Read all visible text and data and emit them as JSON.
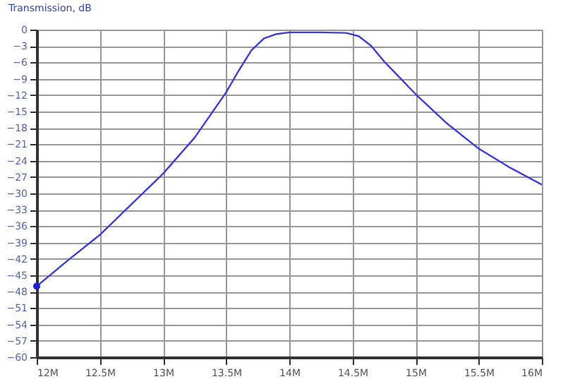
{
  "chart_data": {
    "type": "line",
    "ylabel": "Transmission, dB",
    "xlim": [
      12,
      16
    ],
    "xticks": [
      {
        "value": 12,
        "label": "12M"
      },
      {
        "value": 12.5,
        "label": "12.5M"
      },
      {
        "value": 13,
        "label": "13M"
      },
      {
        "value": 13.5,
        "label": "13.5M"
      },
      {
        "value": 14,
        "label": "14M"
      },
      {
        "value": 14.5,
        "label": "14.5M"
      },
      {
        "value": 15,
        "label": "15M"
      },
      {
        "value": 15.5,
        "label": "15.5M"
      },
      {
        "value": 16,
        "label": "16M"
      }
    ],
    "ylim": [
      -60,
      0
    ],
    "yticks": [
      0,
      -3,
      -6,
      -9,
      -12,
      -15,
      -18,
      -21,
      -24,
      -27,
      -30,
      -33,
      -36,
      -39,
      -42,
      -45,
      -48,
      -51,
      -54,
      -57,
      -60
    ],
    "grid": true,
    "series": [
      {
        "color": "#3c3cd2",
        "x": [
          12,
          12.25,
          12.5,
          12.75,
          13,
          13.25,
          13.5,
          13.6,
          13.7,
          13.8,
          13.9,
          14,
          14.25,
          14.45,
          14.55,
          14.65,
          14.75,
          14.85,
          15,
          15.25,
          15.5,
          15.75,
          16
        ],
        "values": [
          -47,
          -42.2,
          -37.6,
          -32,
          -26.4,
          -19.8,
          -11.5,
          -7.5,
          -3.8,
          -1.6,
          -0.8,
          -0.5,
          -0.5,
          -0.6,
          -1.2,
          -3,
          -5.8,
          -8.2,
          -11.8,
          -17.2,
          -21.8,
          -25.3,
          -28.4
        ]
      },
      {
        "type": "scatter",
        "color": "#2020d0",
        "x": [
          12
        ],
        "values": [
          -47
        ]
      }
    ]
  }
}
